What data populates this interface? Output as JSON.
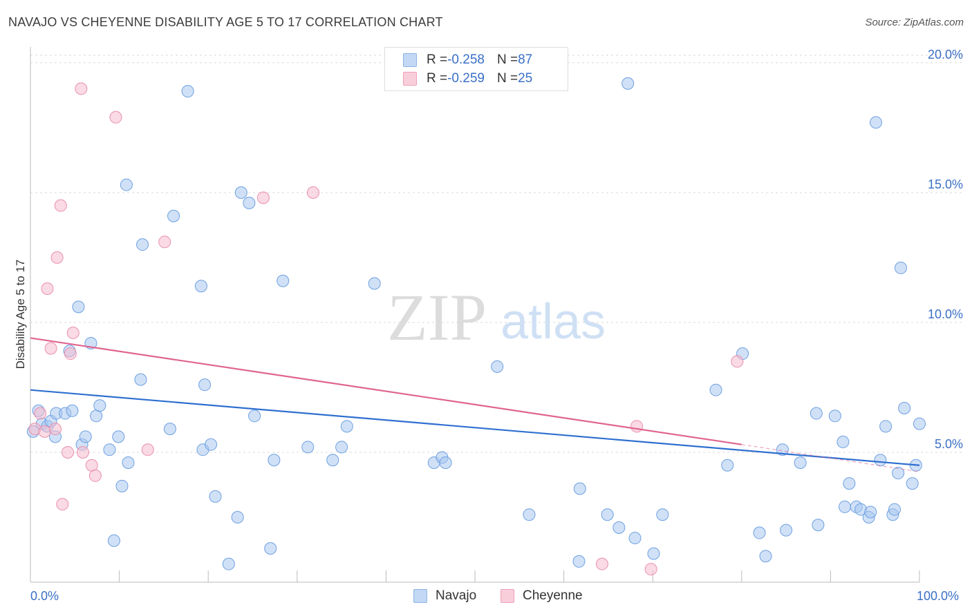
{
  "title": "NAVAJO VS CHEYENNE DISABILITY AGE 5 TO 17 CORRELATION CHART",
  "source": "Source: ZipAtlas.com",
  "watermark": {
    "zip": "ZIP",
    "atlas": "atlas"
  },
  "legend": {
    "rows": [
      {
        "r_label": "R = ",
        "r_value": "-0.258",
        "n_label": "N = ",
        "n_value": "87",
        "color": "#a9c8f0"
      },
      {
        "r_label": "R = ",
        "r_value": "-0.259",
        "n_label": "N = ",
        "n_value": "25",
        "color": "#f6bccd"
      }
    ]
  },
  "bottom_legend": {
    "navajo": "Navajo",
    "cheyenne": "Cheyenne"
  },
  "colors": {
    "navajo_fill": "#a9c8f0",
    "navajo_stroke": "#6d9fe0",
    "navajo_line": "#2f6fd0",
    "cheyenne_fill": "#f6bccd",
    "cheyenne_stroke": "#ea8fab",
    "cheyenne_line": "#e0648f",
    "tick_text": "#3a6fc6",
    "grid": "#d9d9d9"
  },
  "chart_data": {
    "type": "scatter",
    "title": "NAVAJO VS CHEYENNE DISABILITY AGE 5 TO 17 CORRELATION CHART",
    "xlabel": "",
    "ylabel": "Disability Age 5 to 17",
    "xlim": [
      0,
      100
    ],
    "ylim": [
      0,
      20.5
    ],
    "x_tick_labels": [
      "0.0%",
      "100.0%"
    ],
    "y_ticks": [
      5,
      10,
      15,
      20
    ],
    "y_tick_labels": [
      "5.0%",
      "10.0%",
      "15.0%",
      "20.0%"
    ],
    "grid": true,
    "series": [
      {
        "name": "Navajo",
        "trend": {
          "x": [
            0,
            100
          ],
          "y": [
            7.4,
            4.5
          ]
        },
        "points": [
          [
            0.3,
            5.8
          ],
          [
            0.9,
            6.6
          ],
          [
            1.3,
            6.1
          ],
          [
            1.9,
            6.0
          ],
          [
            2.3,
            6.2
          ],
          [
            2.8,
            5.6
          ],
          [
            2.9,
            6.5
          ],
          [
            3.9,
            6.5
          ],
          [
            4.4,
            8.9
          ],
          [
            4.7,
            6.6
          ],
          [
            5.4,
            10.6
          ],
          [
            5.8,
            5.3
          ],
          [
            6.2,
            5.6
          ],
          [
            6.8,
            9.2
          ],
          [
            7.4,
            6.4
          ],
          [
            7.8,
            6.8
          ],
          [
            8.9,
            5.1
          ],
          [
            9.4,
            1.6
          ],
          [
            9.9,
            5.6
          ],
          [
            10.3,
            3.7
          ],
          [
            10.8,
            15.3
          ],
          [
            11.0,
            4.6
          ],
          [
            12.4,
            7.8
          ],
          [
            12.6,
            13.0
          ],
          [
            15.7,
            5.9
          ],
          [
            16.1,
            14.1
          ],
          [
            17.7,
            18.9
          ],
          [
            19.2,
            11.4
          ],
          [
            19.4,
            5.1
          ],
          [
            19.6,
            7.6
          ],
          [
            20.3,
            5.3
          ],
          [
            20.8,
            3.3
          ],
          [
            22.3,
            0.7
          ],
          [
            23.3,
            2.5
          ],
          [
            23.7,
            15.0
          ],
          [
            24.6,
            14.6
          ],
          [
            25.2,
            6.4
          ],
          [
            27.0,
            1.3
          ],
          [
            27.4,
            4.7
          ],
          [
            28.4,
            11.6
          ],
          [
            31.2,
            5.2
          ],
          [
            34.0,
            4.7
          ],
          [
            35.0,
            5.2
          ],
          [
            35.6,
            6.0
          ],
          [
            38.7,
            11.5
          ],
          [
            45.4,
            4.6
          ],
          [
            46.3,
            4.8
          ],
          [
            46.7,
            4.6
          ],
          [
            52.5,
            8.3
          ],
          [
            56.1,
            2.6
          ],
          [
            61.7,
            0.8
          ],
          [
            61.8,
            3.6
          ],
          [
            64.9,
            2.6
          ],
          [
            66.2,
            2.1
          ],
          [
            67.2,
            19.2
          ],
          [
            68.0,
            1.7
          ],
          [
            70.1,
            1.1
          ],
          [
            71.1,
            2.6
          ],
          [
            77.1,
            7.4
          ],
          [
            78.4,
            4.5
          ],
          [
            80.1,
            8.8
          ],
          [
            82.0,
            1.9
          ],
          [
            82.7,
            1.0
          ],
          [
            84.6,
            5.1
          ],
          [
            85.0,
            2.0
          ],
          [
            86.6,
            4.6
          ],
          [
            88.4,
            6.5
          ],
          [
            88.6,
            2.2
          ],
          [
            90.5,
            6.4
          ],
          [
            91.4,
            5.4
          ],
          [
            91.6,
            2.9
          ],
          [
            92.1,
            3.8
          ],
          [
            92.9,
            2.9
          ],
          [
            93.4,
            2.8
          ],
          [
            94.3,
            2.5
          ],
          [
            94.5,
            2.7
          ],
          [
            95.1,
            17.7
          ],
          [
            95.6,
            4.7
          ],
          [
            96.2,
            6.0
          ],
          [
            97.0,
            2.6
          ],
          [
            97.2,
            2.8
          ],
          [
            97.6,
            4.2
          ],
          [
            97.9,
            12.1
          ],
          [
            98.3,
            6.7
          ],
          [
            99.2,
            3.8
          ],
          [
            99.6,
            4.5
          ],
          [
            100.0,
            6.1
          ]
        ]
      },
      {
        "name": "Cheyenne",
        "trend": {
          "x": [
            0,
            80
          ],
          "y": [
            9.4,
            5.3
          ]
        },
        "trend_dashed": {
          "x": [
            80,
            100
          ],
          "y": [
            5.3,
            4.25
          ]
        },
        "points": [
          [
            0.5,
            5.9
          ],
          [
            1.1,
            6.5
          ],
          [
            1.6,
            5.8
          ],
          [
            1.9,
            11.3
          ],
          [
            2.3,
            9.0
          ],
          [
            2.8,
            5.9
          ],
          [
            3.0,
            12.5
          ],
          [
            3.4,
            14.5
          ],
          [
            3.6,
            3.0
          ],
          [
            4.2,
            5.0
          ],
          [
            4.5,
            8.8
          ],
          [
            4.8,
            9.6
          ],
          [
            5.7,
            19.0
          ],
          [
            5.9,
            5.0
          ],
          [
            6.9,
            4.5
          ],
          [
            7.3,
            4.1
          ],
          [
            9.6,
            17.9
          ],
          [
            13.2,
            5.1
          ],
          [
            15.1,
            13.1
          ],
          [
            26.2,
            14.8
          ],
          [
            31.8,
            15.0
          ],
          [
            64.3,
            0.7
          ],
          [
            68.2,
            6.0
          ],
          [
            69.8,
            0.5
          ],
          [
            79.5,
            8.5
          ]
        ]
      }
    ]
  }
}
